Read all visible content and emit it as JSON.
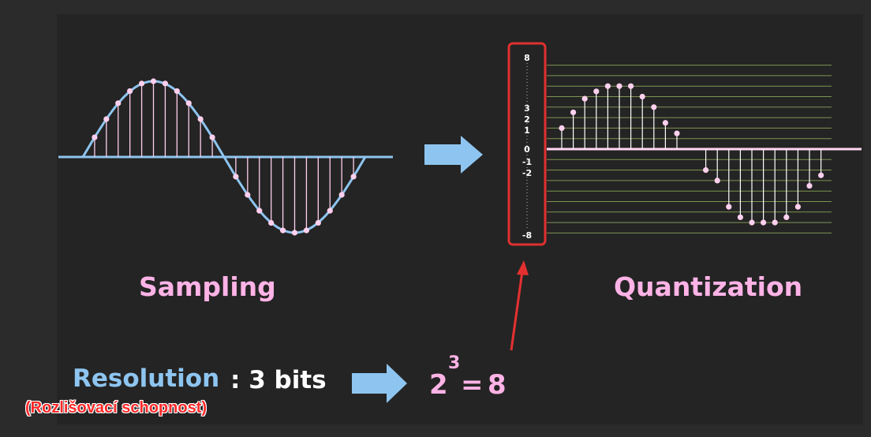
{
  "sampling": {
    "label": "Sampling",
    "samples": [
      0.26,
      0.5,
      0.71,
      0.87,
      0.97,
      1.0,
      0.97,
      0.87,
      0.71,
      0.5,
      0.26,
      0.0,
      -0.26,
      -0.5,
      -0.71,
      -0.87,
      -0.97,
      -1.0,
      -0.97,
      -0.87,
      -0.71,
      -0.5,
      -0.26
    ],
    "wave_color": "#8ec5f0",
    "stem_color": "#ffd0ee"
  },
  "quantization": {
    "label": "Quantization",
    "axis_ticks": [
      "8",
      "3",
      "2",
      "1",
      "0",
      "-1",
      "-2",
      "-8"
    ],
    "levels_min": -8,
    "levels_max": 8,
    "samples": [
      2,
      3.5,
      4.8,
      5.5,
      6,
      6,
      6,
      5,
      4,
      2.5,
      1.5,
      -2,
      -3,
      -5.5,
      -6.5,
      -7,
      -7,
      -7,
      -6.5,
      -5.5,
      -3.5,
      -2.5
    ],
    "highlight_color": "#e03030",
    "grid_color": "#7f9450"
  },
  "resolution": {
    "label": "Resolution",
    "value": ": 3 bits",
    "power_base": "2",
    "power_exp": "3",
    "power_eq": "=",
    "power_result": "8"
  },
  "annotation": "(Rozlišovací schopnost)",
  "arrow_color": "#8ec5f0"
}
